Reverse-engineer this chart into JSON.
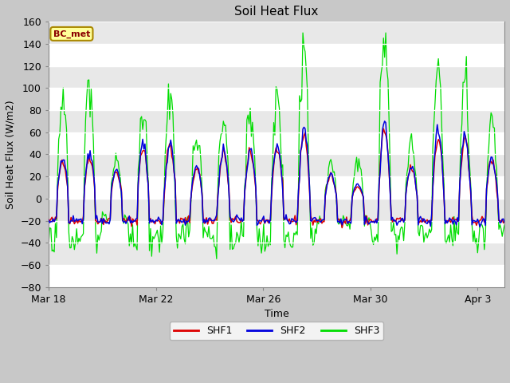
{
  "title": "Soil Heat Flux",
  "xlabel": "Time",
  "ylabel": "Soil Heat Flux (W/m2)",
  "ylim": [
    -80,
    160
  ],
  "yticks": [
    -80,
    -60,
    -40,
    -20,
    0,
    20,
    40,
    60,
    80,
    100,
    120,
    140,
    160
  ],
  "fig_bg_color": "#c8c8c8",
  "plot_bg_color": "#e8e8e8",
  "grid_color": "#ffffff",
  "shf1_color": "#dd0000",
  "shf2_color": "#0000dd",
  "shf3_color": "#00dd00",
  "legend_labels": [
    "SHF1",
    "SHF2",
    "SHF3"
  ],
  "annotation_text": "BC_met",
  "annotation_bg": "#ffff99",
  "annotation_border": "#aa8800",
  "xtick_labels": [
    "Mar 18",
    "Mar 22",
    "Mar 26",
    "Mar 30",
    "Apr 3"
  ]
}
